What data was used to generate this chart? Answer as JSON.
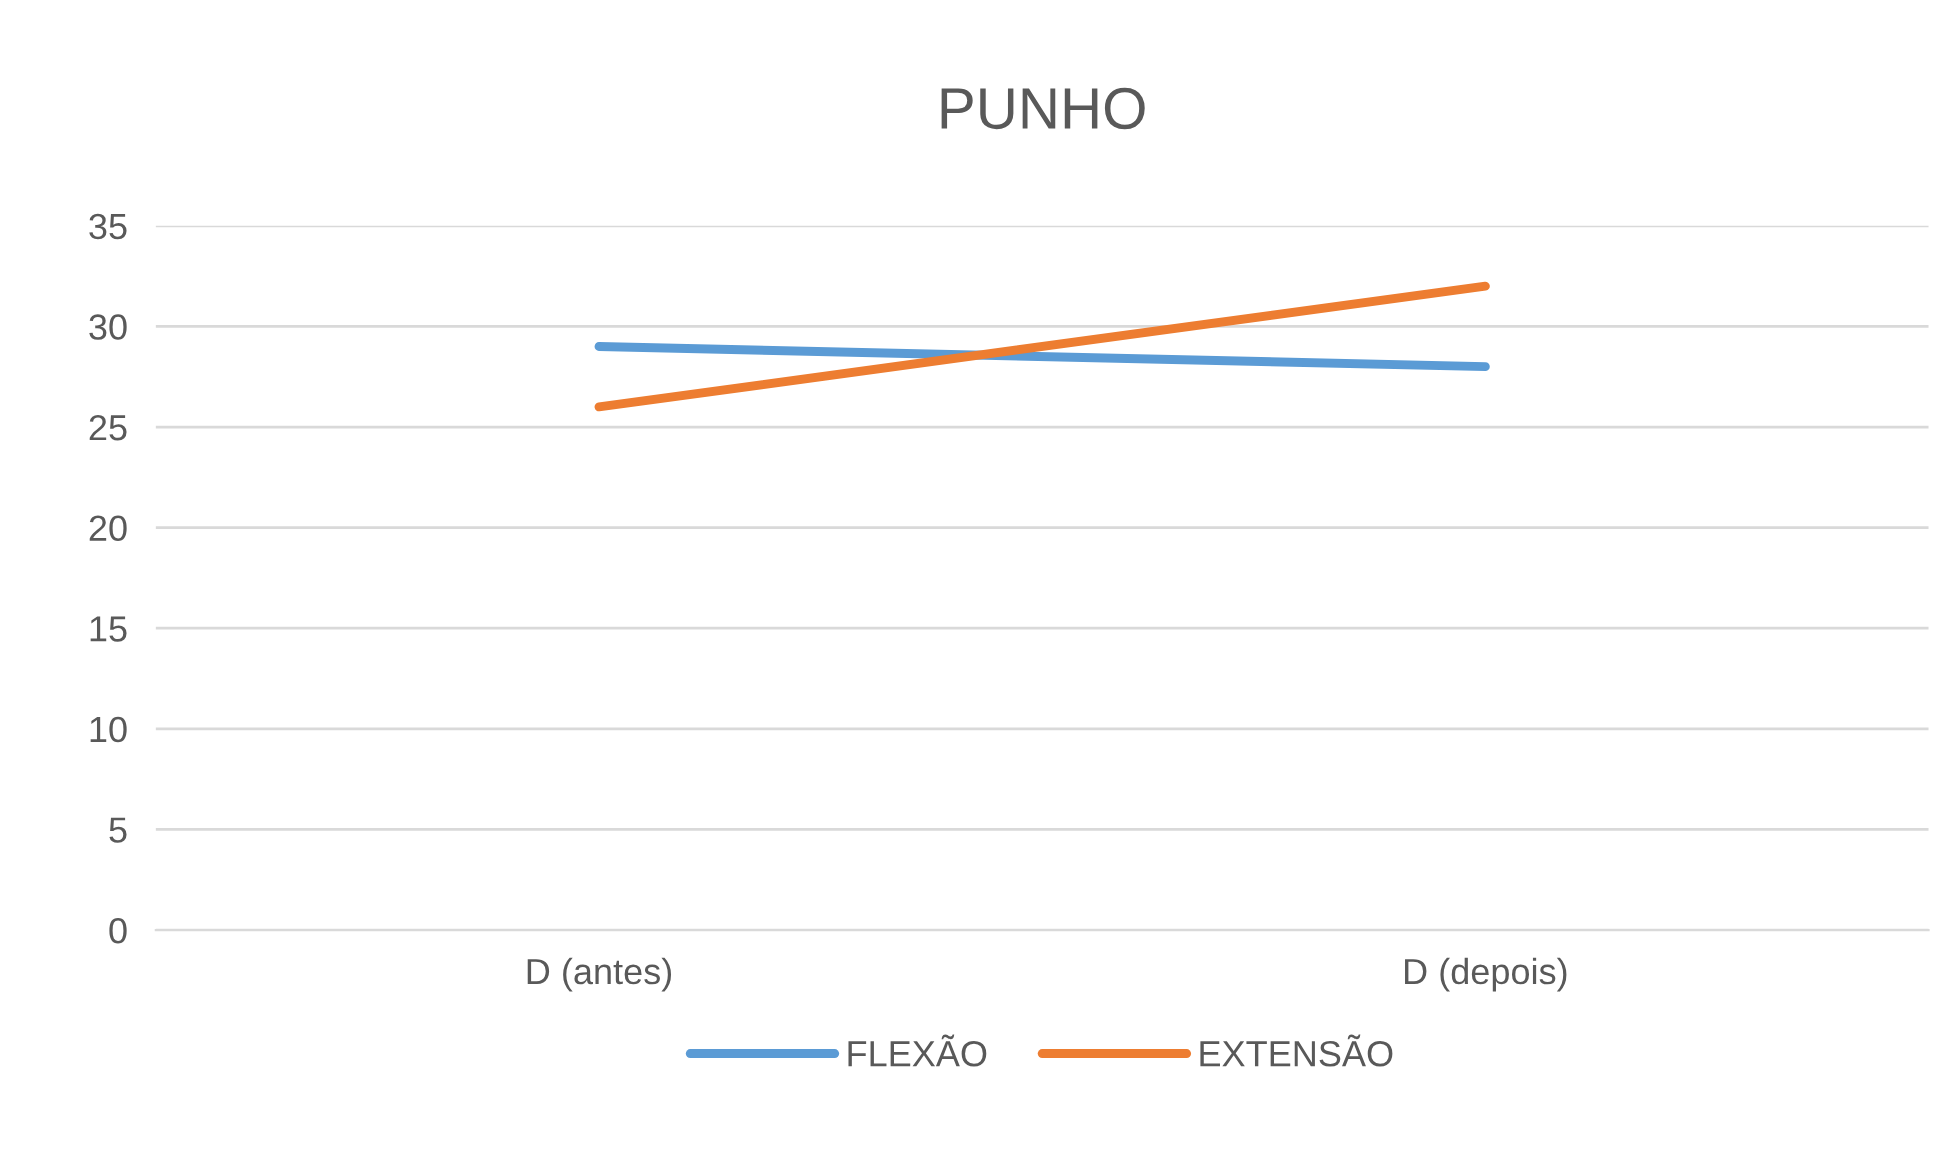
{
  "chart_data": {
    "type": "line",
    "title": "PUNHO",
    "categories": [
      "D (antes)",
      "D (depois)"
    ],
    "series": [
      {
        "name": "FLEXÃO",
        "color": "#5b9bd5",
        "values": [
          29,
          28
        ]
      },
      {
        "name": "EXTENSÃO",
        "color": "#ed7d31",
        "values": [
          26,
          32
        ]
      }
    ],
    "ylim": [
      0,
      35
    ],
    "yticks": [
      0,
      5,
      10,
      15,
      20,
      25,
      30,
      35
    ],
    "grid": "y",
    "legend": "bottom",
    "marker": "none"
  }
}
